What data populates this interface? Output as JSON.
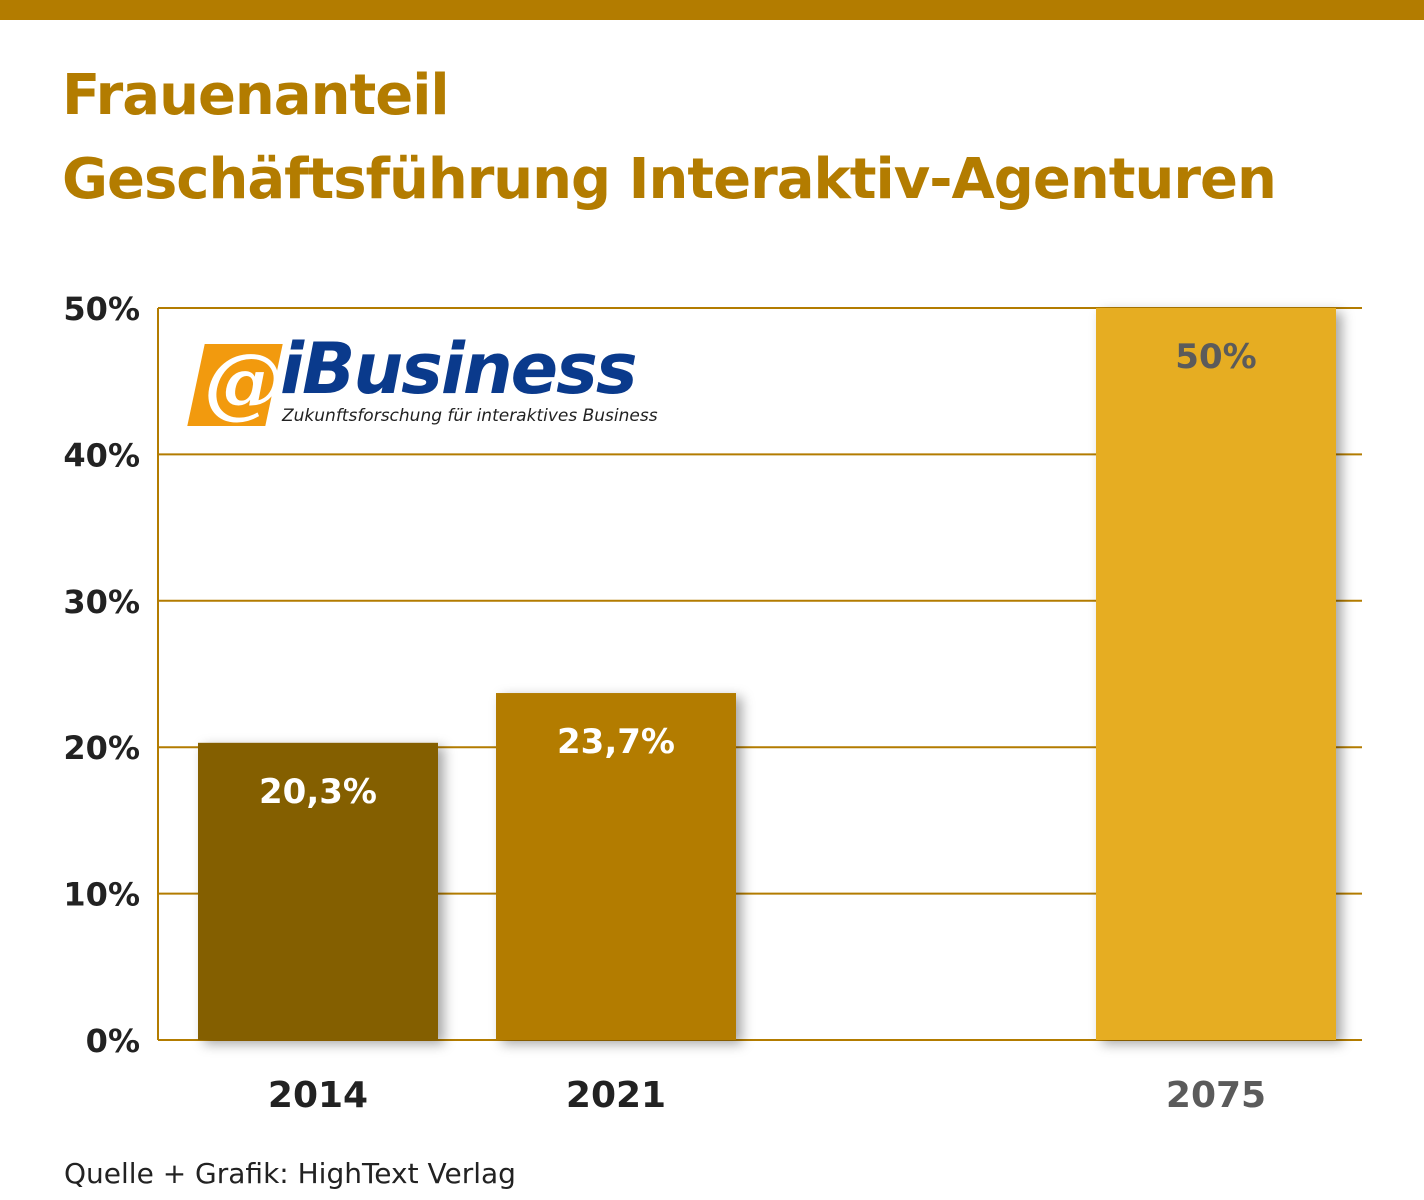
{
  "title": {
    "line1": "Frauenanteil",
    "line2": "Geschäftsführung Interaktiv-Agenturen"
  },
  "logo": {
    "wordmark": "iBusiness",
    "tagline": "Zukunftsforschung für interaktives Business",
    "icon": "at-sign-icon"
  },
  "source": "Quelle + Grafik: HighText Verlag",
  "colors": {
    "title": "#b37c00",
    "accent_bar": "#b37c00",
    "grid": "#b37c00",
    "logo_word": "#0a3a8c",
    "logo_badge": "#f29a0e"
  },
  "chart_data": {
    "type": "bar",
    "categories": [
      "2014",
      "2021",
      "2075"
    ],
    "values": [
      20.3,
      23.7,
      50
    ],
    "value_labels": [
      "20,3%",
      "23,7%",
      "50%"
    ],
    "bar_colors": [
      "#845e00",
      "#b37c00",
      "#e6ad23"
    ],
    "value_label_colors": [
      "#ffffff",
      "#ffffff",
      "#5b5b5b"
    ],
    "category_label_colors": [
      "#222222",
      "#222222",
      "#5b5b5b"
    ],
    "yticks": [
      0,
      10,
      20,
      30,
      40,
      50
    ],
    "ytick_labels": [
      "0%",
      "10%",
      "20%",
      "30%",
      "40%",
      "50%"
    ],
    "ylim": [
      0,
      50
    ],
    "grid": true,
    "xlabel": "",
    "ylabel": ""
  }
}
